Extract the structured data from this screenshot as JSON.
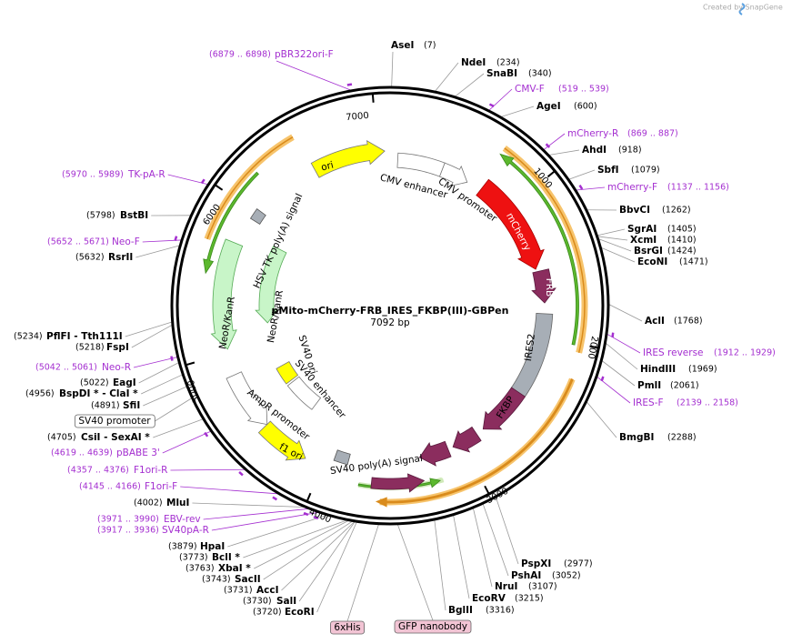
{
  "header": {
    "watermark": "Created by SnapGene"
  },
  "plasmid": {
    "name": "pMito-mCherry-FRB_IRES_FKBP(III)-GBPen",
    "length": "7092 bp"
  },
  "ticks": [
    "1000",
    "2000",
    "3000",
    "4000",
    "5000",
    "6000",
    "7000"
  ],
  "enzymes": [
    {
      "name": "AseI",
      "position": "(7)"
    },
    {
      "name": "NdeI",
      "position": "(234)"
    },
    {
      "name": "SnaBI",
      "position": "(340)"
    },
    {
      "name": "AgeI",
      "position": "(600)"
    },
    {
      "name": "AhdI",
      "position": "(918)"
    },
    {
      "name": "SbfI",
      "position": "(1079)"
    },
    {
      "name": "BbvCI",
      "position": "(1262)"
    },
    {
      "name": "SgrAI",
      "position": "(1405)"
    },
    {
      "name": "XcmI",
      "position": "(1410)"
    },
    {
      "name": "BsrGI",
      "position": "(1424)"
    },
    {
      "name": "EcoNI",
      "position": "(1471)"
    },
    {
      "name": "AclI",
      "position": "(1768)"
    },
    {
      "name": "HindIII",
      "position": "(1969)"
    },
    {
      "name": "PmlI",
      "position": "(2061)"
    },
    {
      "name": "BmgBI",
      "position": "(2288)"
    },
    {
      "name": "PspXI",
      "position": "(2977)"
    },
    {
      "name": "PshAI",
      "position": "(3052)"
    },
    {
      "name": "NruI",
      "position": "(3107)"
    },
    {
      "name": "EcoRV",
      "position": "(3215)"
    },
    {
      "name": "BglII",
      "position": "(3316)"
    },
    {
      "name": "EcoRI",
      "position": "(3720)"
    },
    {
      "name": "SalI",
      "position": "(3730)"
    },
    {
      "name": "AccI",
      "position": "(3731)"
    },
    {
      "name": "SacII",
      "position": "(3743)"
    },
    {
      "name": "XbaI *",
      "position": "(3763)"
    },
    {
      "name": "BclI *",
      "position": "(3773)"
    },
    {
      "name": "HpaI",
      "position": "(3879)"
    },
    {
      "name": "MluI",
      "position": "(4002)"
    },
    {
      "name": "CsiI  - SexAI *",
      "position": "(4705)"
    },
    {
      "name": "SfiI",
      "position": "(4891)"
    },
    {
      "name": "BspDI * - ClaI *",
      "position": "(4956)"
    },
    {
      "name": "EagI",
      "position": "(5022)"
    },
    {
      "name": "FspI",
      "position": "(5218)"
    },
    {
      "name": "PflFI  - Tth111I",
      "position": "(5234)"
    },
    {
      "name": "RsrII",
      "position": "(5632)"
    },
    {
      "name": "BstBI",
      "position": "(5798)"
    }
  ],
  "primers": [
    {
      "name": "CMV-F",
      "range": "(519 .. 539)"
    },
    {
      "name": "mCherry-R",
      "range": "(869 .. 887)"
    },
    {
      "name": "mCherry-F",
      "range": "(1137 .. 1156)"
    },
    {
      "name": "IRES reverse",
      "range": "(1912 .. 1929)"
    },
    {
      "name": "IRES-F",
      "range": "(2139 .. 2158)"
    },
    {
      "name": "SV40pA-R",
      "range": "(3917 .. 3936)"
    },
    {
      "name": "EBV-rev",
      "range": "(3971 .. 3990)"
    },
    {
      "name": "F1ori-F",
      "range": "(4145 .. 4166)"
    },
    {
      "name": "F1ori-R",
      "range": "(4357 .. 4376)"
    },
    {
      "name": "pBABE 3'",
      "range": "(4619 .. 4639)"
    },
    {
      "name": "Neo-R",
      "range": "(5042 .. 5061)"
    },
    {
      "name": "Neo-F",
      "range": "(5652 .. 5671)"
    },
    {
      "name": "TK-pA-R",
      "range": "(5970 .. 5989)"
    },
    {
      "name": "pBR322ori-F",
      "range": "(6879 .. 6898)"
    }
  ],
  "features": [
    "CMV enhancer",
    "CMV promoter",
    "mCherry",
    "FRB",
    "IRES2",
    "FKBP",
    "FKBP",
    "FKBP",
    "SV40 poly(A) signal",
    "f1 ori",
    "AmpR promoter",
    "NeoR/KanR",
    "NeoR/KanR",
    "SV40 ori",
    "SV40 enhancer",
    "HSV TK poly(A) signal",
    "ori"
  ],
  "badges": [
    "6xHis",
    "GFP nanobody",
    "SV40 promoter"
  ]
}
